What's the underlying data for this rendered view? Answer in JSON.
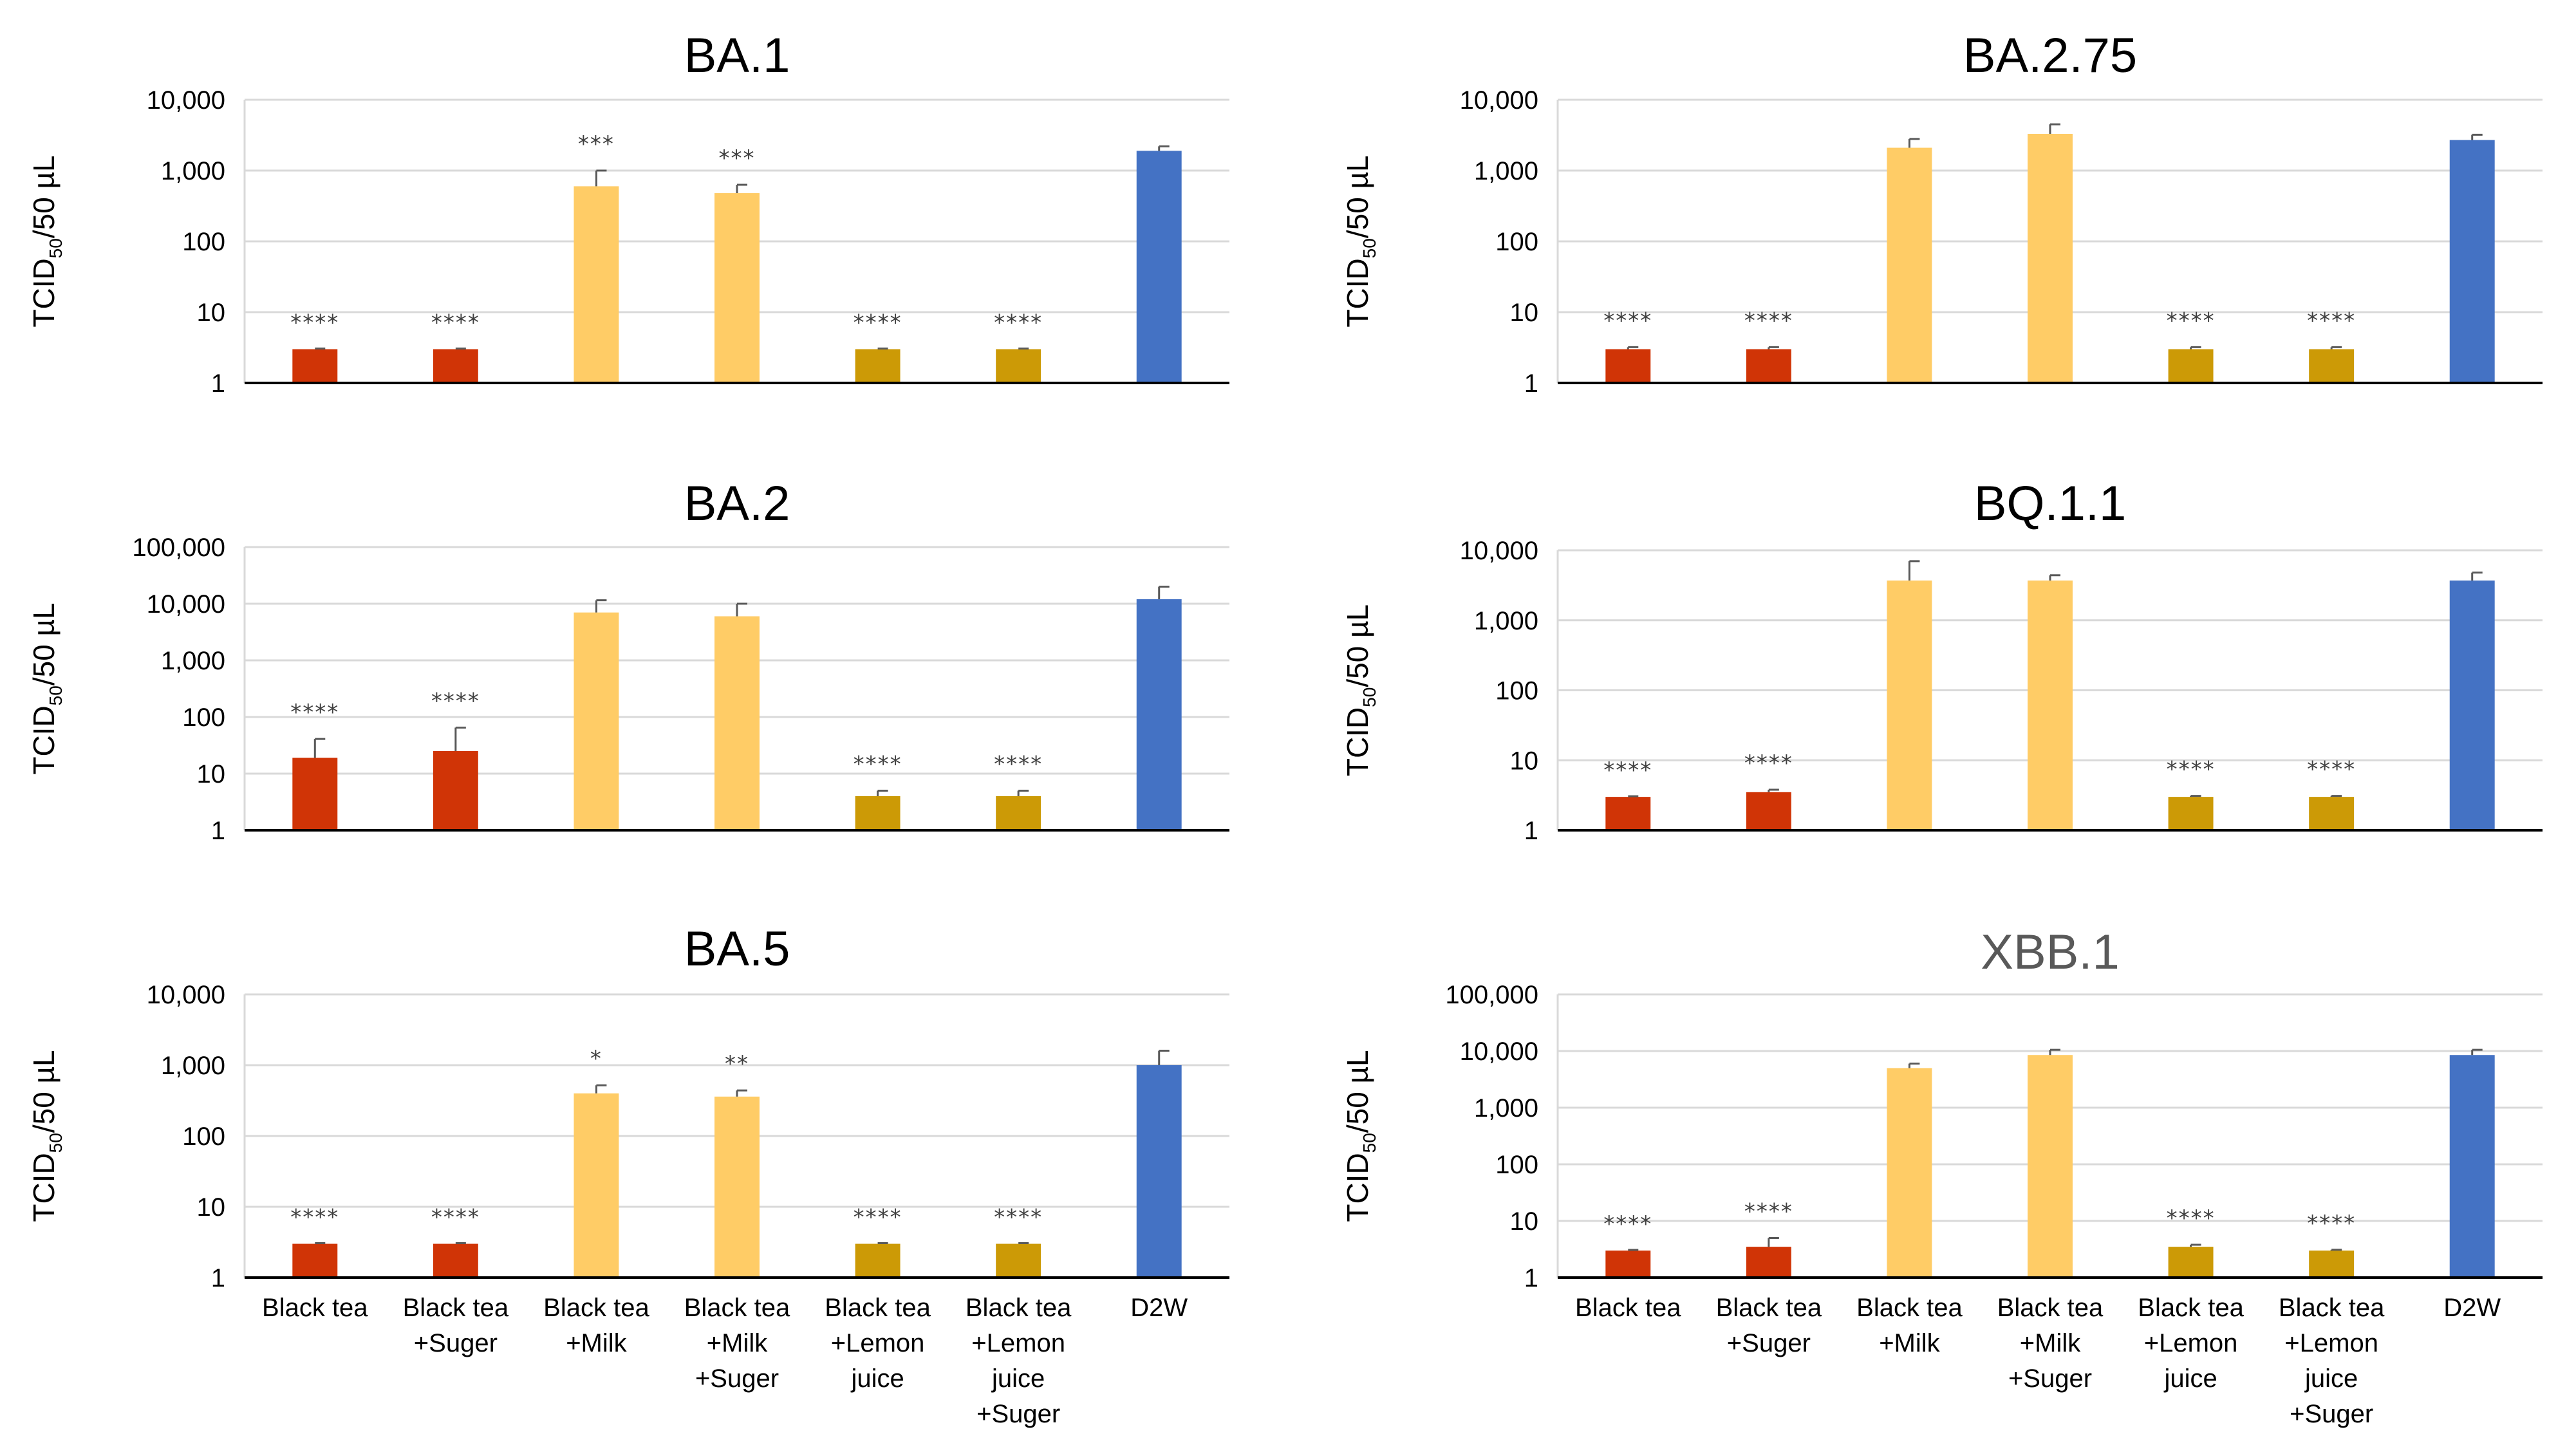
{
  "y_axis_label": {
    "main": "TCID",
    "sub": "50",
    "tail": "/50 µL"
  },
  "categories": [
    [
      "Black tea"
    ],
    [
      "Black tea",
      "+Suger"
    ],
    [
      "Black tea",
      "+Milk"
    ],
    [
      "Black tea",
      "+Milk",
      "+Suger"
    ],
    [
      "Black tea",
      "+Lemon",
      "juice"
    ],
    [
      "Black tea",
      "+Lemon",
      "juice",
      "+Suger"
    ],
    [
      "D2W"
    ]
  ],
  "colors": {
    "black_tea": "#D03406",
    "milk": "#FFCC66",
    "lemon": "#CC9A06",
    "d2w": "#4472C4",
    "grid": "#D9D9D9",
    "error_bar": "#595959"
  },
  "chart_data": [
    {
      "type": "bar",
      "title": "BA.1",
      "yscale": "log",
      "ylim": [
        1,
        10000
      ],
      "yticks": [
        "1",
        "10",
        "100",
        "1,000",
        "10,000"
      ],
      "values": [
        3,
        3,
        600,
        480,
        3,
        3,
        1900
      ],
      "errors": [
        0,
        0,
        400,
        150,
        0,
        0,
        300
      ],
      "significance": [
        "****",
        "****",
        "***",
        "***",
        "****",
        "****",
        ""
      ]
    },
    {
      "type": "bar",
      "title": "BA.2.75",
      "yscale": "log",
      "ylim": [
        1,
        10000
      ],
      "yticks": [
        "1",
        "10",
        "100",
        "1,000",
        "10,000"
      ],
      "values": [
        3,
        3,
        2100,
        3300,
        3,
        3,
        2700
      ],
      "errors": [
        0.2,
        0.2,
        700,
        1200,
        0.2,
        0.2,
        500
      ],
      "significance": [
        "****",
        "****",
        "",
        "",
        "****",
        "****",
        ""
      ]
    },
    {
      "type": "bar",
      "title": "BA.2",
      "yscale": "log",
      "ylim": [
        1,
        100000
      ],
      "yticks": [
        "1",
        "10",
        "100",
        "1,000",
        "10,000",
        "100,000"
      ],
      "values": [
        19,
        25,
        7000,
        6000,
        4,
        4,
        12000
      ],
      "errors": [
        22,
        40,
        4500,
        4000,
        1,
        1,
        8000
      ],
      "significance": [
        "****",
        "****",
        "",
        "",
        "****",
        "****",
        ""
      ]
    },
    {
      "type": "bar",
      "title": "BQ.1.1",
      "yscale": "log",
      "ylim": [
        1,
        10000
      ],
      "yticks": [
        "1",
        "10",
        "100",
        "1,000",
        "10,000"
      ],
      "values": [
        3,
        3.5,
        3700,
        3700,
        3,
        3,
        3700
      ],
      "errors": [
        0,
        0.3,
        3300,
        700,
        0.1,
        0.1,
        1100
      ],
      "significance": [
        "****",
        "****",
        "",
        "",
        "****",
        "****",
        ""
      ]
    },
    {
      "type": "bar",
      "title": "BA.5",
      "yscale": "log",
      "ylim": [
        1,
        10000
      ],
      "yticks": [
        "1",
        "10",
        "100",
        "1,000",
        "10,000"
      ],
      "values": [
        3,
        3,
        400,
        360,
        3,
        3,
        1000
      ],
      "errors": [
        0,
        0,
        120,
        80,
        0,
        0,
        600
      ],
      "significance": [
        "****",
        "****",
        "*",
        "**",
        "****",
        "****",
        ""
      ]
    },
    {
      "type": "bar",
      "title": "XBB.1",
      "yscale": "log",
      "ylim": [
        1,
        100000
      ],
      "yticks": [
        "1",
        "10",
        "100",
        "1,000",
        "10,000",
        "100,000"
      ],
      "values": [
        3,
        3.5,
        5000,
        8500,
        3.5,
        3,
        8500
      ],
      "errors": [
        0,
        1.5,
        1000,
        2000,
        0.3,
        0.1,
        2000
      ],
      "significance": [
        "****",
        "****",
        "",
        "",
        "****",
        "****",
        ""
      ]
    }
  ]
}
